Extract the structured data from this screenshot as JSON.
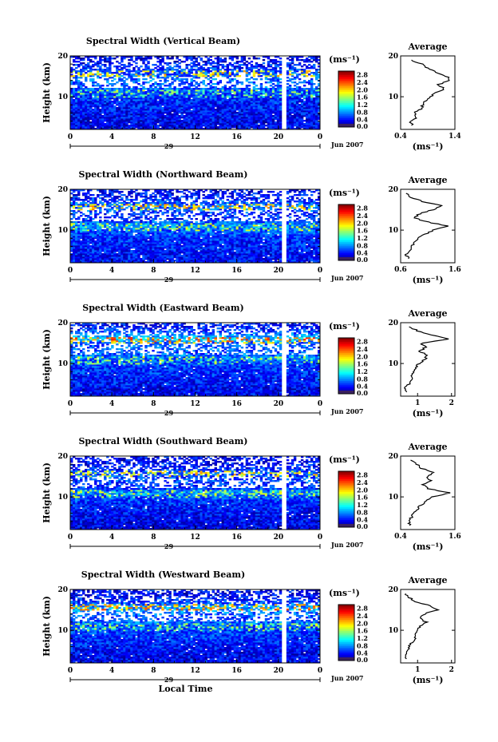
{
  "chart_data": [
    {
      "type": "heatmap",
      "title": "Spectral Width (Vertical Beam)",
      "ylabel": "Height (km)",
      "y_ticks": [
        "20",
        "10"
      ],
      "x_ticks": [
        "0",
        "4",
        "8",
        "12",
        "16",
        "20",
        "0"
      ],
      "day_label": "29",
      "date_label": "Jun 2007",
      "xlim": [
        0,
        24
      ],
      "ylim": [
        2,
        20
      ],
      "colorbar": {
        "unit_label": "(ms⁻¹)",
        "ticks": [
          "2.8",
          "2.4",
          "2.0",
          "1.6",
          "1.2",
          "0.8",
          "0.4",
          "0.0"
        ],
        "range": [
          0,
          3.0
        ]
      },
      "profile": {
        "title": "Average",
        "xlabel": "(ms⁻¹)",
        "x_ticks": [
          "0.4",
          "1.4"
        ],
        "y_ticks": [
          "20",
          "10"
        ],
        "xlim": [
          0.4,
          1.4
        ],
        "points": [
          [
            0.62,
            3
          ],
          [
            0.58,
            4
          ],
          [
            0.7,
            5
          ],
          [
            0.65,
            6
          ],
          [
            0.78,
            7
          ],
          [
            0.8,
            8
          ],
          [
            0.85,
            9
          ],
          [
            0.95,
            10
          ],
          [
            1.05,
            11
          ],
          [
            1.2,
            12
          ],
          [
            1.1,
            13
          ],
          [
            1.32,
            14
          ],
          [
            1.25,
            15
          ],
          [
            1.05,
            16
          ],
          [
            0.9,
            17
          ],
          [
            0.8,
            18
          ],
          [
            0.6,
            19
          ]
        ]
      }
    },
    {
      "type": "heatmap",
      "title": "Spectral Width (Northward Beam)",
      "ylabel": "Height (km)",
      "y_ticks": [
        "20",
        "10"
      ],
      "x_ticks": [
        "0",
        "4",
        "8",
        "12",
        "16",
        "20",
        "0"
      ],
      "day_label": "29",
      "date_label": "Jun 2007",
      "xlim": [
        0,
        24
      ],
      "ylim": [
        2,
        20
      ],
      "colorbar": {
        "unit_label": "(ms⁻¹)",
        "ticks": [
          "2.8",
          "2.4",
          "2.0",
          "1.6",
          "1.2",
          "0.8",
          "0.4",
          "0.0"
        ],
        "range": [
          0,
          3.0
        ]
      },
      "profile": {
        "title": "Average",
        "xlabel": "(ms⁻¹)",
        "x_ticks": [
          "0.6",
          "1.6"
        ],
        "y_ticks": [
          "20",
          "10"
        ],
        "xlim": [
          0.6,
          1.6
        ],
        "points": [
          [
            0.75,
            3
          ],
          [
            0.7,
            4
          ],
          [
            0.78,
            5
          ],
          [
            0.8,
            6
          ],
          [
            0.85,
            7
          ],
          [
            0.9,
            8
          ],
          [
            1.05,
            9
          ],
          [
            1.2,
            10
          ],
          [
            1.45,
            11
          ],
          [
            1.1,
            12
          ],
          [
            0.85,
            13
          ],
          [
            0.95,
            14
          ],
          [
            1.2,
            15
          ],
          [
            1.35,
            16
          ],
          [
            1.0,
            17
          ],
          [
            0.8,
            18
          ],
          [
            0.7,
            19
          ]
        ]
      }
    },
    {
      "type": "heatmap",
      "title": "Spectral Width (Eastward Beam)",
      "ylabel": "Height (km)",
      "y_ticks": [
        "20",
        "10"
      ],
      "x_ticks": [
        "0",
        "4",
        "8",
        "12",
        "16",
        "20",
        "0"
      ],
      "day_label": "29",
      "date_label": "Jun 2007",
      "xlim": [
        0,
        24
      ],
      "ylim": [
        2,
        20
      ],
      "colorbar": {
        "unit_label": "(ms⁻¹)",
        "ticks": [
          "2.8",
          "2.4",
          "2.0",
          "1.6",
          "1.2",
          "0.8",
          "0.4",
          "0.0"
        ],
        "range": [
          0,
          3.0
        ]
      },
      "profile": {
        "title": "Average",
        "xlabel": "(ms⁻¹)",
        "x_ticks": [
          "1",
          "2"
        ],
        "y_ticks": [
          "20",
          "10"
        ],
        "xlim": [
          0.5,
          2.1
        ],
        "points": [
          [
            0.65,
            3
          ],
          [
            0.62,
            4
          ],
          [
            0.75,
            5
          ],
          [
            0.8,
            6
          ],
          [
            0.85,
            7
          ],
          [
            0.9,
            8
          ],
          [
            0.95,
            9
          ],
          [
            1.05,
            10
          ],
          [
            1.2,
            11
          ],
          [
            1.3,
            12
          ],
          [
            1.05,
            13
          ],
          [
            1.25,
            14
          ],
          [
            1.1,
            15
          ],
          [
            1.9,
            16
          ],
          [
            1.4,
            17
          ],
          [
            1.0,
            18
          ],
          [
            0.75,
            19
          ]
        ]
      }
    },
    {
      "type": "heatmap",
      "title": "Spectral Width (Southward Beam)",
      "ylabel": "Height (km)",
      "y_ticks": [
        "20",
        "10"
      ],
      "x_ticks": [
        "0",
        "4",
        "8",
        "12",
        "16",
        "20",
        "0"
      ],
      "day_label": "29",
      "date_label": "Jun 2007",
      "xlim": [
        0,
        24
      ],
      "ylim": [
        2,
        20
      ],
      "colorbar": {
        "unit_label": "(ms⁻¹)",
        "ticks": [
          "2.8",
          "2.4",
          "2.0",
          "1.6",
          "1.2",
          "0.8",
          "0.4",
          "0.0"
        ],
        "range": [
          0,
          3.0
        ]
      },
      "profile": {
        "title": "Average",
        "xlabel": "(ms⁻¹)",
        "x_ticks": [
          "0.4",
          "1.6"
        ],
        "y_ticks": [
          "20",
          "10"
        ],
        "xlim": [
          0.4,
          1.6
        ],
        "points": [
          [
            0.6,
            3
          ],
          [
            0.58,
            4
          ],
          [
            0.65,
            5
          ],
          [
            0.7,
            6
          ],
          [
            0.78,
            7
          ],
          [
            0.85,
            8
          ],
          [
            0.95,
            9
          ],
          [
            1.1,
            10
          ],
          [
            1.5,
            11
          ],
          [
            1.0,
            12
          ],
          [
            0.9,
            13
          ],
          [
            1.05,
            14
          ],
          [
            1.0,
            15
          ],
          [
            1.15,
            16
          ],
          [
            0.85,
            17
          ],
          [
            0.75,
            18
          ],
          [
            0.62,
            19
          ]
        ]
      }
    },
    {
      "type": "heatmap",
      "title": "Spectral Width (Westward Beam)",
      "ylabel": "Height (km)",
      "y_ticks": [
        "20",
        "10"
      ],
      "x_ticks": [
        "0",
        "4",
        "8",
        "12",
        "16",
        "20",
        "0"
      ],
      "day_label": "29",
      "date_label": "Jun 2007",
      "xlabel": "Local Time",
      "xlim": [
        0,
        24
      ],
      "ylim": [
        2,
        20
      ],
      "colorbar": {
        "unit_label": "(ms⁻¹)",
        "ticks": [
          "2.8",
          "2.4",
          "2.0",
          "1.6",
          "1.2",
          "0.8",
          "0.4",
          "0.0"
        ],
        "range": [
          0,
          3.0
        ]
      },
      "profile": {
        "title": "Average",
        "xlabel": "(ms⁻¹)",
        "x_ticks": [
          "1",
          "2"
        ],
        "y_ticks": [
          "20",
          "10"
        ],
        "xlim": [
          0.5,
          2.1
        ],
        "points": [
          [
            0.65,
            3
          ],
          [
            0.62,
            4
          ],
          [
            0.7,
            5
          ],
          [
            0.75,
            6
          ],
          [
            0.85,
            7
          ],
          [
            0.9,
            8
          ],
          [
            0.95,
            9
          ],
          [
            1.0,
            10
          ],
          [
            1.1,
            11
          ],
          [
            1.25,
            12
          ],
          [
            1.05,
            13
          ],
          [
            1.2,
            14
          ],
          [
            1.6,
            15
          ],
          [
            1.4,
            16
          ],
          [
            0.95,
            17
          ],
          [
            0.75,
            18
          ],
          [
            0.65,
            19
          ]
        ]
      }
    }
  ]
}
